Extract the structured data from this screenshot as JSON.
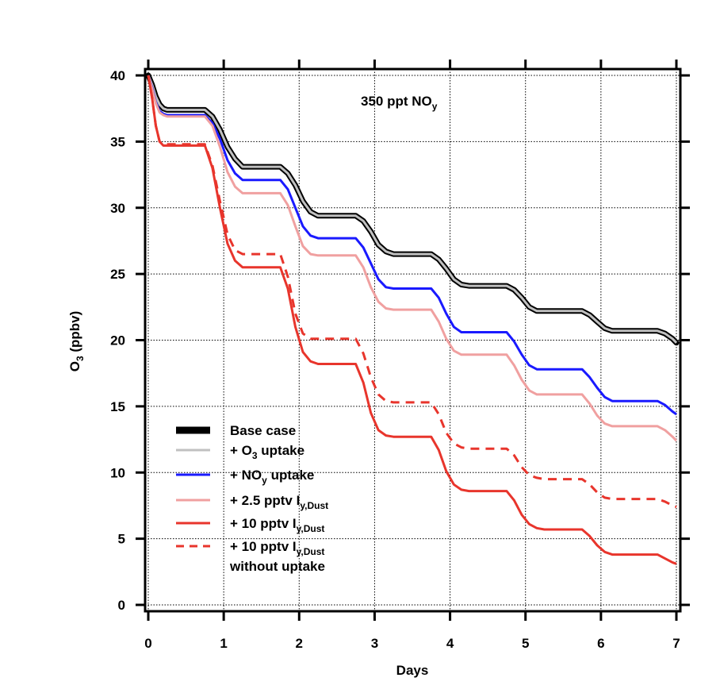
{
  "chart_data": {
    "type": "line",
    "annotation": {
      "main": "350 ppt NO",
      "sub": "y"
    },
    "xlabel": "Days",
    "ylabel": {
      "main": "O",
      "sub": "3",
      "rest": " (ppbv)"
    },
    "xlim": [
      0,
      7
    ],
    "ylim": [
      0,
      40
    ],
    "xticks": [
      0,
      1,
      2,
      3,
      4,
      5,
      6,
      7
    ],
    "yticks": [
      0,
      5,
      10,
      15,
      20,
      25,
      30,
      35,
      40
    ],
    "grid": true,
    "legend_position": "bottom-left",
    "series": [
      {
        "name": "Base case",
        "label": [
          {
            "t": "Base case"
          }
        ],
        "color": "#000000",
        "style": "thick-solid",
        "x": [
          0,
          0.05,
          0.1,
          0.15,
          0.2,
          0.25,
          0.3,
          0.75,
          0.85,
          0.95,
          1.05,
          1.15,
          1.25,
          1.75,
          1.85,
          1.95,
          2.05,
          2.15,
          2.25,
          2.75,
          2.85,
          2.95,
          3.05,
          3.15,
          3.25,
          3.75,
          3.85,
          3.95,
          4.05,
          4.15,
          4.25,
          4.75,
          4.85,
          4.95,
          5.05,
          5.15,
          5.25,
          5.75,
          5.85,
          5.95,
          6.05,
          6.15,
          6.25,
          6.75,
          6.85,
          6.95,
          7.0
        ],
        "y": [
          40.0,
          39.3,
          38.4,
          37.8,
          37.5,
          37.4,
          37.4,
          37.4,
          36.9,
          35.9,
          34.6,
          33.7,
          33.1,
          33.1,
          32.6,
          31.7,
          30.5,
          29.7,
          29.4,
          29.4,
          29.0,
          28.2,
          27.2,
          26.7,
          26.5,
          26.5,
          26.1,
          25.4,
          24.6,
          24.2,
          24.1,
          24.1,
          23.8,
          23.2,
          22.5,
          22.2,
          22.2,
          22.2,
          21.9,
          21.4,
          20.9,
          20.7,
          20.7,
          20.7,
          20.5,
          20.1,
          19.8
        ]
      },
      {
        "name": "+ O3 uptake",
        "label": [
          {
            "t": "+ O"
          },
          {
            "t": "3",
            "sub": true
          },
          {
            "t": " uptake"
          }
        ],
        "color": "#c0c0c0",
        "style": "solid",
        "x": [
          0,
          0.05,
          0.1,
          0.15,
          0.2,
          0.25,
          0.3,
          0.75,
          0.85,
          0.95,
          1.05,
          1.15,
          1.25,
          1.75,
          1.85,
          1.95,
          2.05,
          2.15,
          2.25,
          2.75,
          2.85,
          2.95,
          3.05,
          3.15,
          3.25,
          3.75,
          3.85,
          3.95,
          4.05,
          4.15,
          4.25,
          4.75,
          4.85,
          4.95,
          5.05,
          5.15,
          5.25,
          5.75,
          5.85,
          5.95,
          6.05,
          6.15,
          6.25,
          6.75,
          6.85,
          6.95,
          7.0
        ],
        "y": [
          40.0,
          39.3,
          38.4,
          37.8,
          37.5,
          37.4,
          37.4,
          37.4,
          36.9,
          35.9,
          34.6,
          33.7,
          33.1,
          33.1,
          32.6,
          31.7,
          30.5,
          29.7,
          29.4,
          29.4,
          29.0,
          28.2,
          27.2,
          26.7,
          26.5,
          26.5,
          26.1,
          25.4,
          24.6,
          24.2,
          24.1,
          24.1,
          23.8,
          23.2,
          22.5,
          22.2,
          22.2,
          22.2,
          21.9,
          21.4,
          20.9,
          20.7,
          20.7,
          20.7,
          20.5,
          20.1,
          19.8
        ]
      },
      {
        "name": "+ NOy uptake",
        "label": [
          {
            "t": "+ NO"
          },
          {
            "t": "y",
            "sub": true
          },
          {
            "t": " uptake"
          }
        ],
        "color": "#1a1aff",
        "style": "solid",
        "x": [
          0,
          0.05,
          0.1,
          0.15,
          0.2,
          0.25,
          0.3,
          0.75,
          0.85,
          0.95,
          1.05,
          1.15,
          1.25,
          1.75,
          1.85,
          1.95,
          2.05,
          2.15,
          2.25,
          2.75,
          2.85,
          2.95,
          3.05,
          3.15,
          3.25,
          3.75,
          3.85,
          3.95,
          4.05,
          4.15,
          4.25,
          4.75,
          4.85,
          4.95,
          5.05,
          5.15,
          5.25,
          5.75,
          5.85,
          5.95,
          6.05,
          6.15,
          6.25,
          6.75,
          6.85,
          6.95,
          7.0
        ],
        "y": [
          40.0,
          39.1,
          38.0,
          37.3,
          37.1,
          37.0,
          37.0,
          37.0,
          36.4,
          35.2,
          33.6,
          32.6,
          32.1,
          32.1,
          31.4,
          30.0,
          28.6,
          27.9,
          27.7,
          27.7,
          27.0,
          25.8,
          24.6,
          24.0,
          23.9,
          23.9,
          23.2,
          22.0,
          21.0,
          20.6,
          20.6,
          20.6,
          19.9,
          18.9,
          18.1,
          17.8,
          17.8,
          17.8,
          17.2,
          16.4,
          15.7,
          15.4,
          15.4,
          15.4,
          15.1,
          14.6,
          14.4
        ]
      },
      {
        "name": "+ 2.5 pptv Iy,Dust",
        "label": [
          {
            "t": "+ 2.5 pptv I"
          },
          {
            "t": "y,Dust",
            "sub": true
          }
        ],
        "color": "#f0a0a0",
        "style": "solid",
        "x": [
          0,
          0.05,
          0.1,
          0.15,
          0.2,
          0.25,
          0.3,
          0.75,
          0.85,
          0.95,
          1.05,
          1.15,
          1.25,
          1.75,
          1.85,
          1.95,
          2.05,
          2.15,
          2.25,
          2.75,
          2.85,
          2.95,
          3.05,
          3.15,
          3.25,
          3.75,
          3.85,
          3.95,
          4.05,
          4.15,
          4.25,
          4.75,
          4.85,
          4.95,
          5.05,
          5.15,
          5.25,
          5.75,
          5.85,
          5.95,
          6.05,
          6.15,
          6.25,
          6.75,
          6.85,
          6.95,
          7.0
        ],
        "y": [
          40.0,
          39.0,
          37.9,
          37.2,
          37.0,
          36.9,
          36.9,
          36.9,
          36.2,
          34.6,
          32.7,
          31.6,
          31.1,
          31.1,
          30.2,
          28.6,
          27.1,
          26.5,
          26.4,
          26.4,
          25.5,
          24.0,
          22.9,
          22.4,
          22.3,
          22.3,
          21.4,
          20.1,
          19.2,
          18.9,
          18.9,
          18.9,
          18.1,
          17.0,
          16.2,
          15.9,
          15.9,
          15.9,
          15.2,
          14.3,
          13.7,
          13.5,
          13.5,
          13.5,
          13.2,
          12.7,
          12.4
        ]
      },
      {
        "name": "+ 10 pptv Iy,Dust",
        "label": [
          {
            "t": "+ 10 pptv I"
          },
          {
            "t": "y,Dust",
            "sub": true
          }
        ],
        "color": "#e8352c",
        "style": "solid",
        "x": [
          0,
          0.05,
          0.1,
          0.15,
          0.2,
          0.25,
          0.3,
          0.75,
          0.85,
          0.95,
          1.05,
          1.15,
          1.25,
          1.75,
          1.85,
          1.95,
          2.05,
          2.15,
          2.25,
          2.75,
          2.85,
          2.95,
          3.05,
          3.15,
          3.25,
          3.75,
          3.85,
          3.95,
          4.05,
          4.15,
          4.25,
          4.75,
          4.85,
          4.95,
          5.05,
          5.15,
          5.25,
          5.75,
          5.85,
          5.95,
          6.05,
          6.15,
          6.25,
          6.75,
          6.85,
          6.95,
          7.0
        ],
        "y": [
          40.0,
          38.3,
          36.2,
          35.0,
          34.7,
          34.7,
          34.7,
          34.7,
          33.0,
          30.0,
          27.3,
          26.0,
          25.5,
          25.5,
          23.9,
          21.0,
          19.1,
          18.4,
          18.2,
          18.2,
          16.8,
          14.5,
          13.2,
          12.8,
          12.7,
          12.7,
          11.7,
          10.1,
          9.1,
          8.7,
          8.6,
          8.6,
          7.9,
          6.8,
          6.1,
          5.8,
          5.7,
          5.7,
          5.2,
          4.5,
          4.0,
          3.8,
          3.8,
          3.8,
          3.5,
          3.2,
          3.1
        ]
      },
      {
        "name": "+ 10 pptv Iy,Dust without uptake",
        "label": [
          {
            "t": "+ 10 pptv I"
          },
          {
            "t": "y,Dust",
            "sub": true
          }
        ],
        "label2": "without uptake",
        "color": "#e8352c",
        "style": "dashed",
        "x": [
          0,
          0.05,
          0.1,
          0.15,
          0.2,
          0.25,
          0.3,
          0.75,
          0.85,
          0.95,
          1.05,
          1.15,
          1.25,
          1.75,
          1.85,
          1.95,
          2.05,
          2.15,
          2.25,
          2.75,
          2.85,
          2.95,
          3.05,
          3.15,
          3.25,
          3.75,
          3.85,
          3.95,
          4.05,
          4.15,
          4.25,
          4.75,
          4.85,
          4.95,
          5.05,
          5.15,
          5.25,
          5.75,
          5.85,
          5.95,
          6.05,
          6.15,
          6.25,
          6.75,
          6.85,
          6.95,
          7.0
        ],
        "y": [
          40.0,
          38.3,
          36.2,
          35.0,
          34.8,
          34.8,
          34.8,
          34.8,
          33.2,
          30.5,
          28.0,
          26.8,
          26.5,
          26.5,
          24.8,
          22.0,
          20.5,
          20.1,
          20.1,
          20.1,
          19.0,
          17.2,
          15.9,
          15.4,
          15.3,
          15.3,
          14.4,
          13.0,
          12.2,
          11.9,
          11.8,
          11.8,
          11.3,
          10.4,
          9.8,
          9.6,
          9.5,
          9.5,
          9.1,
          8.5,
          8.1,
          8.0,
          8.0,
          8.0,
          7.8,
          7.5,
          7.4
        ]
      }
    ]
  }
}
